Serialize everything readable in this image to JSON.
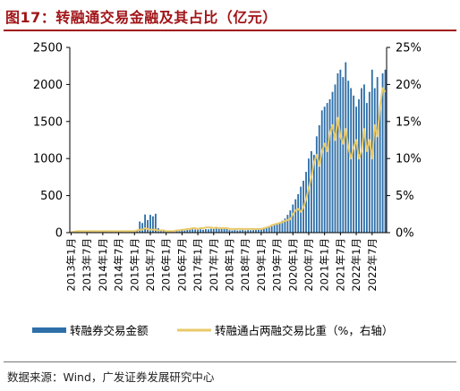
{
  "header": {
    "title": "图17：转融通交易金融及其占比（亿元）"
  },
  "footer": {
    "source": "数据来源：Wind，广发证券发展研究中心"
  },
  "chart_data": {
    "type": "bar",
    "title": "图17：转融通交易金融及其占比（亿元）",
    "colors": {
      "bars": "#2e6fa8",
      "line": "#e8c96a"
    },
    "y_left": {
      "lim": [
        0,
        2500
      ],
      "ticks": [
        "0",
        "500",
        "1000",
        "1500",
        "2000",
        "2500"
      ]
    },
    "y_right": {
      "lim": [
        0,
        25
      ],
      "ticks": [
        "0%",
        "5%",
        "10%",
        "15%",
        "20%",
        "25%"
      ]
    },
    "x_labels": [
      "2013年1月",
      "2013年7月",
      "2014年1月",
      "2014年7月",
      "2015年1月",
      "2015年7月",
      "2016年1月",
      "2016年7月",
      "2017年1月",
      "2017年7月",
      "2018年1月",
      "2018年7月",
      "2019年1月",
      "2019年7月",
      "2020年1月",
      "2020年7月",
      "2021年1月",
      "2021年7月",
      "2022年1月",
      "2022年7月"
    ],
    "legend_position": "bottom",
    "series": [
      {
        "name": "转融券交易金额",
        "type": "bar",
        "axis": "left",
        "x_start": "2013-01",
        "x_step_months": 1,
        "values": [
          8,
          9,
          10,
          10,
          11,
          10,
          10,
          11,
          10,
          10,
          11,
          10,
          10,
          11,
          10,
          11,
          10,
          11,
          10,
          11,
          10,
          11,
          10,
          12,
          20,
          40,
          150,
          130,
          245,
          170,
          240,
          220,
          255,
          60,
          40,
          30,
          22,
          20,
          18,
          18,
          22,
          25,
          30,
          28,
          35,
          40,
          45,
          42,
          42,
          45,
          40,
          48,
          45,
          52,
          48,
          55,
          50,
          52,
          48,
          50,
          35,
          30,
          35,
          30,
          32,
          35,
          30,
          35,
          32,
          35,
          38,
          40,
          45,
          55,
          65,
          75,
          85,
          110,
          125,
          140,
          160,
          190,
          240,
          300,
          380,
          450,
          520,
          620,
          700,
          820,
          1000,
          1100,
          1050,
          1300,
          1450,
          1650,
          1700,
          1750,
          1800,
          1900,
          2000,
          2150,
          2200,
          2100,
          2300,
          2050,
          1950,
          1850,
          1700,
          1800,
          1950,
          2000,
          1750,
          1900,
          2200,
          1950,
          2100,
          1700,
          2150,
          2200
        ],
        "series_ref": "chart_data.series.0"
      },
      {
        "name": "转融通占两融交易比重（%，右轴）",
        "type": "line",
        "axis": "right",
        "x_start": "2013-01",
        "x_step_months": 1,
        "values": [
          0.1,
          0.1,
          0.2,
          0.2,
          0.2,
          0.2,
          0.2,
          0.2,
          0.2,
          0.2,
          0.2,
          0.2,
          0.2,
          0.2,
          0.2,
          0.2,
          0.2,
          0.2,
          0.2,
          0.2,
          0.2,
          0.2,
          0.2,
          0.2,
          0.2,
          0.3,
          0.4,
          0.4,
          0.6,
          0.5,
          0.4,
          0.4,
          0.4,
          0.3,
          0.3,
          0.3,
          0.2,
          0.2,
          0.2,
          0.2,
          0.3,
          0.3,
          0.4,
          0.4,
          0.5,
          0.5,
          0.6,
          0.6,
          0.5,
          0.6,
          0.6,
          0.7,
          0.7,
          0.7,
          0.6,
          0.7,
          0.6,
          0.6,
          0.6,
          0.6,
          0.5,
          0.5,
          0.5,
          0.5,
          0.5,
          0.5,
          0.5,
          0.5,
          0.5,
          0.5,
          0.5,
          0.5,
          0.5,
          0.6,
          0.7,
          0.8,
          1.0,
          1.1,
          1.2,
          1.3,
          1.4,
          1.6,
          1.7,
          1.8,
          2.5,
          3.0,
          3.2,
          2.8,
          3.4,
          4.5,
          6.0,
          7.5,
          9.5,
          10.5,
          9.0,
          11.0,
          12.0,
          11.0,
          13.5,
          14.5,
          12.5,
          15.5,
          13.0,
          12.0,
          14.0,
          11.5,
          10.0,
          11.5,
          12.5,
          10.0,
          11.0,
          14.0,
          11.0,
          12.5,
          10.0,
          14.5,
          13.0,
          17.0,
          19.5,
          19.0
        ]
      }
    ]
  }
}
